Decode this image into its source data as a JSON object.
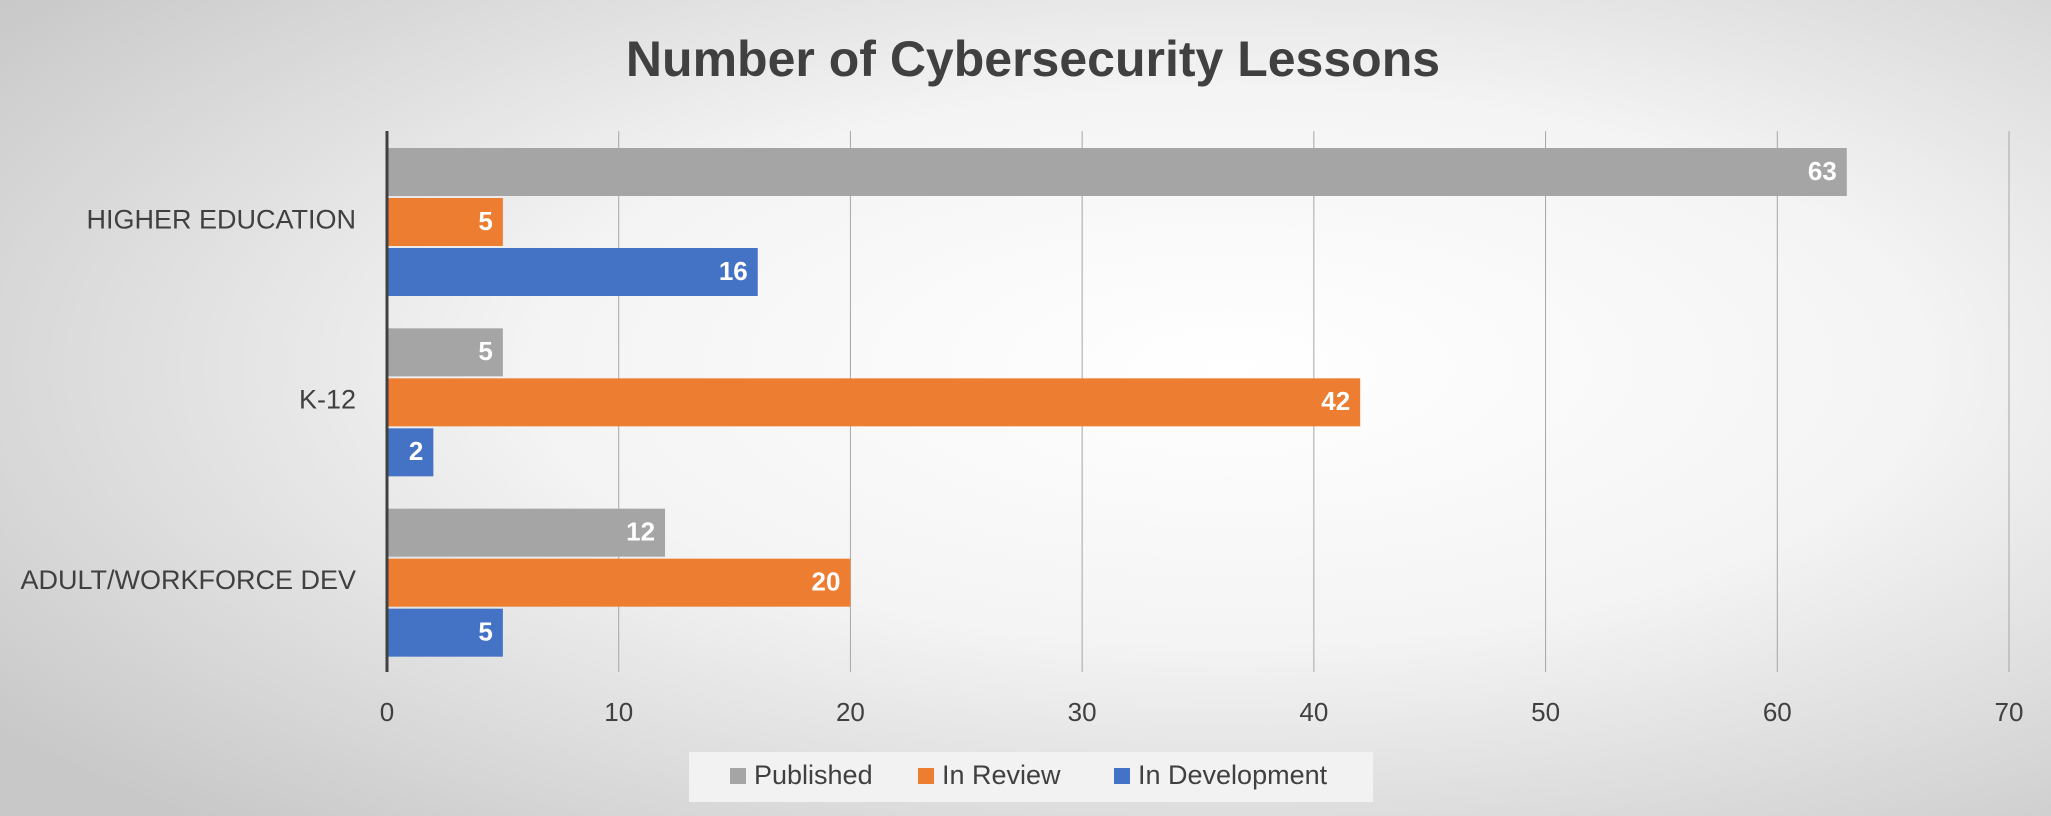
{
  "chart_data": {
    "type": "bar",
    "orientation": "horizontal",
    "title": "Number of Cybersecurity Lessons",
    "categories": [
      "HIGHER EDUCATION",
      "K-12",
      "ADULT/WORKFORCE DEV"
    ],
    "series": [
      {
        "name": "Published",
        "color": "#a5a5a5",
        "values": [
          63,
          5,
          12
        ]
      },
      {
        "name": "In Review",
        "color": "#ed7d31",
        "values": [
          5,
          42,
          20
        ]
      },
      {
        "name": "In Development",
        "color": "#4472c4",
        "values": [
          16,
          2,
          5
        ]
      }
    ],
    "xlim": [
      0,
      70
    ],
    "xticks": [
      0,
      10,
      20,
      30,
      40,
      50,
      60,
      70
    ],
    "grid": true,
    "legend": "bottom"
  }
}
